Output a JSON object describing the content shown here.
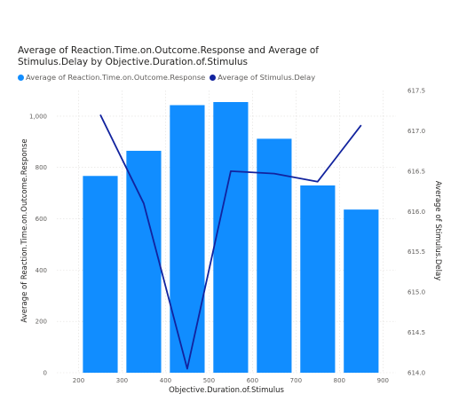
{
  "chart_data": {
    "type": "bar+line",
    "title": "Average of Reaction.Time.on.Outcome.Response and Average of Stimulus.Delay by Objective.Duration.of.Stimulus",
    "xlabel": "Objective.Duration.of.Stimulus",
    "ylabel_left": "Average of Reaction.Time.on.Outcome.Response",
    "ylabel_right": "Average of Stimulus.Delay",
    "x": [
      250,
      350,
      450,
      550,
      650,
      750,
      850
    ],
    "xlim": [
      150,
      930
    ],
    "x_ticks": [
      "200",
      "300",
      "400",
      "500",
      "600",
      "700",
      "800",
      "900"
    ],
    "ylim_left": [
      0,
      1100
    ],
    "y_ticks_left": [
      "0",
      "200",
      "400",
      "600",
      "800",
      "1,000"
    ],
    "ylim_right": [
      614.0,
      617.5
    ],
    "y_ticks_right": [
      "614.0",
      "614.5",
      "615.0",
      "615.5",
      "616.0",
      "616.5",
      "617.0",
      "617.5"
    ],
    "grid": true,
    "legend_position": "top-left",
    "series": [
      {
        "name": "Average of Reaction.Time.on.Outcome.Response",
        "type": "bar",
        "axis": "left",
        "color": "#118dff",
        "values": [
          767,
          865,
          1043,
          1055,
          912,
          730,
          636
        ]
      },
      {
        "name": "Average of Stimulus.Delay",
        "type": "line",
        "axis": "right",
        "color": "#12239e",
        "values": [
          617.2,
          616.1,
          614.05,
          616.5,
          616.47,
          616.37,
          617.07
        ]
      }
    ]
  }
}
